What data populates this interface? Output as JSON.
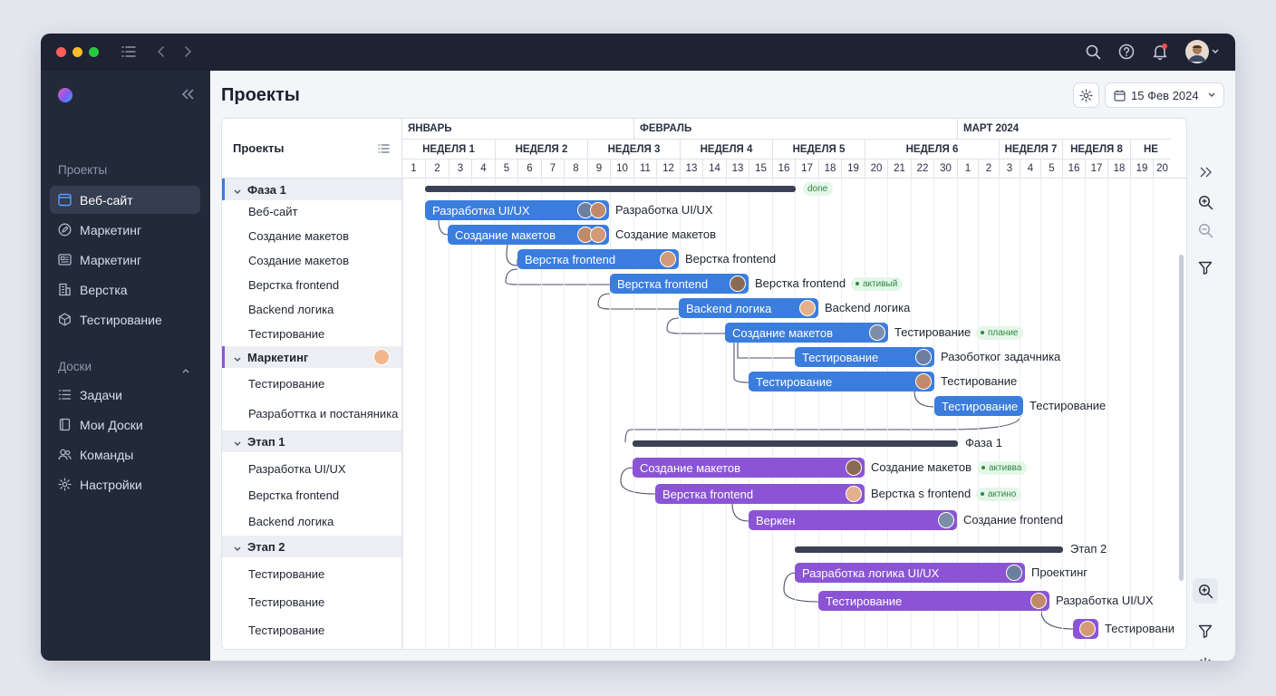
{
  "window": {
    "traffic_lights": [
      "#ff5f57",
      "#febc2e",
      "#28c840"
    ],
    "notification_color": "#ff4d4f"
  },
  "sidebar": {
    "section_projects": "Проекты",
    "items_projects": [
      {
        "label": "Веб-сайт",
        "icon": "browser-window-icon",
        "active": true
      },
      {
        "label": "Маркетинг",
        "icon": "edit-circle-icon"
      },
      {
        "label": "Маркетинг",
        "icon": "newspaper-icon"
      },
      {
        "label": "Верстка",
        "icon": "building-icon"
      },
      {
        "label": "Тестирование",
        "icon": "cube-icon"
      }
    ],
    "section_boards": "Доски",
    "items_boards": [
      {
        "label": "Задачи",
        "icon": "list-icon"
      },
      {
        "label": "Мои Доски",
        "icon": "notebook-icon"
      },
      {
        "label": "Команды",
        "icon": "users-icon"
      },
      {
        "label": "Настройки",
        "icon": "gear-icon"
      }
    ]
  },
  "header": {
    "title": "Проекты",
    "date": "15 Фев 2024"
  },
  "left_column": {
    "title": "Проекты",
    "rows": [
      {
        "label": "Фаза 1",
        "type": "group",
        "marker": "#3b7ddd"
      },
      {
        "label": "Веб-сайт",
        "type": "task"
      },
      {
        "label": "Создание макетов",
        "type": "task"
      },
      {
        "label": "Создание макетов",
        "type": "task"
      },
      {
        "label": "Верстка frontend",
        "type": "task"
      },
      {
        "label": "Backend логика",
        "type": "task"
      },
      {
        "label": "Тестирование",
        "type": "task"
      },
      {
        "label": "Маркетинг",
        "type": "group",
        "marker": "#8b54d6"
      },
      {
        "label": "Тестирование",
        "type": "task"
      },
      {
        "label": "Разработтка и постаняника",
        "type": "task"
      },
      {
        "label": "Этап 1",
        "type": "group"
      },
      {
        "label": "Разработка UI/UX",
        "type": "task"
      },
      {
        "label": "Верстка frontend",
        "type": "task"
      },
      {
        "label": "Backend логика",
        "type": "task"
      },
      {
        "label": "Этап 2",
        "type": "group"
      },
      {
        "label": "Тестирование",
        "type": "task"
      },
      {
        "label": "Тестирование",
        "type": "task"
      },
      {
        "label": "Тестирование",
        "type": "task"
      }
    ]
  },
  "timeline": {
    "months": [
      "ЯНВАРЬ",
      "ФЕВРАЛЬ",
      "МАРТ 2024"
    ],
    "weeks": [
      "НЕДЕЛЯ 1",
      "НЕДЕЛЯ 2",
      "НЕДЕЛЯ 3",
      "НЕДЕЛЯ 4",
      "НЕДЕЛЯ 5",
      "НЕДЕЛЯ 6",
      "НЕДЕЛЯ 7",
      "НЕДЕЛЯ 8",
      "НЕ"
    ],
    "days": [
      "1",
      "2",
      "3",
      "4",
      "5",
      "6",
      "7",
      "8",
      "9",
      "10",
      "11",
      "12",
      "13",
      "14",
      "13",
      "15",
      "16",
      "17",
      "18",
      "19",
      "20",
      "21",
      "22",
      "30",
      "1",
      "2",
      "3",
      "4",
      "5",
      "16",
      "17",
      "18",
      "19",
      "20"
    ]
  },
  "gantt": {
    "bars": [
      {
        "label": "Разработка UI/UX",
        "color": "blue",
        "avatars": 2,
        "outside": "Разработка UI/UX"
      },
      {
        "label": "Создание макетов",
        "color": "blue",
        "avatars": 2,
        "outside": "Создание макетов"
      },
      {
        "label": "Верстка frontend",
        "color": "blue",
        "avatars": 1,
        "outside": "Верстка frontend"
      },
      {
        "label": "Верстка frontend",
        "color": "blue",
        "avatars": 1,
        "outside": "Верстка frontend",
        "badge": "активый"
      },
      {
        "label": "Backend логика",
        "color": "blue",
        "avatars": 1,
        "outside": "Backend логика"
      },
      {
        "label": "Создание макетов",
        "color": "blue",
        "avatars": 1,
        "outside": "Тестирование",
        "badge": "плание"
      },
      {
        "label": "Тестирование",
        "color": "blue",
        "avatars": 1,
        "outside": "Разоботког задачника"
      },
      {
        "label": "Тестирование",
        "color": "blue",
        "avatars": 1,
        "outside": "Тестирование"
      },
      {
        "label": "Тестирование",
        "color": "blue",
        "avatars": 0,
        "outside": "Тестирование"
      },
      {
        "label": "Создание макетов",
        "color": "purple",
        "avatars": 1,
        "outside": "Создание макетов",
        "badge": "активва"
      },
      {
        "label": "Верстка frontend",
        "color": "purple",
        "avatars": 1,
        "outside": "Верстка s frontend",
        "badge": "актино"
      },
      {
        "label": "Веркен",
        "color": "purple",
        "avatars": 1,
        "outside": "Создание frontend"
      },
      {
        "label": "Разработка логика UI/UX",
        "color": "purple",
        "avatars": 1,
        "outside": "Проектинг"
      },
      {
        "label": "Тестирование",
        "color": "purple",
        "avatars": 1,
        "outside": "Разработка UI/UX"
      },
      {
        "label": "",
        "color": "purple",
        "avatars": 1,
        "outside": "Тестировани"
      }
    ],
    "phases": [
      {
        "label": "",
        "badge": "done"
      },
      {
        "label": "Фаза 1"
      },
      {
        "label": "Этап 2"
      }
    ]
  },
  "right_toolbar": [
    "chevrons-right-icon",
    "zoom-in-icon",
    "zoom-out-icon",
    "filter-icon",
    "zoom-in-icon",
    "filter-icon",
    "gear-icon"
  ]
}
